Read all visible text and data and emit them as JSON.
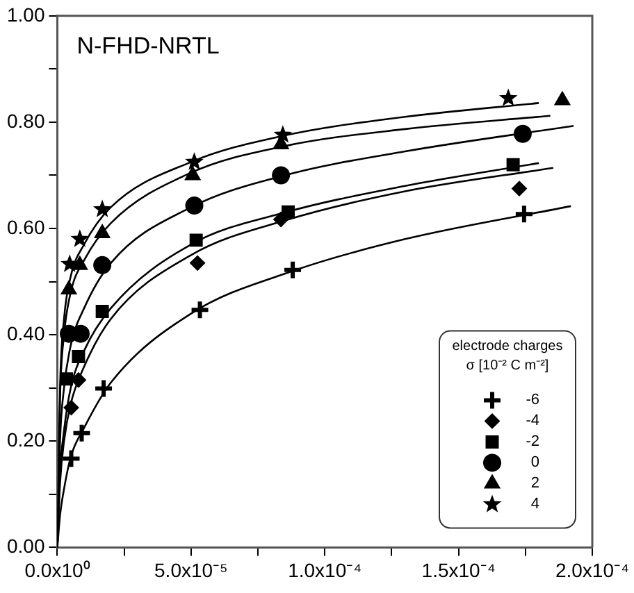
{
  "chart_data": {
    "type": "scatter",
    "title": "N-FHD-NRTL",
    "legend_title": "electrode charges\nσ [10⁻² C m⁻²]",
    "legend": "bottom right",
    "grid": false,
    "xlim": [
      0,
      0.0002
    ],
    "xticks": [
      {
        "value": 0,
        "label": "0.0x10⁰"
      },
      {
        "value": 2.5e-05,
        "label": null
      },
      {
        "value": 5e-05,
        "label": "5.0x10⁻⁵"
      },
      {
        "value": 7.5e-05,
        "label": null
      },
      {
        "value": 0.0001,
        "label": "1.0x10⁻⁴"
      },
      {
        "value": 0.000125,
        "label": null
      },
      {
        "value": 0.00015,
        "label": "1.5x10⁻⁴"
      },
      {
        "value": 0.000175,
        "label": null
      },
      {
        "value": 0.0002,
        "label": "2.0x10⁻⁴"
      }
    ],
    "ylim": [
      0,
      1
    ],
    "yticks": [
      {
        "value": 0,
        "label": "0.00"
      },
      {
        "value": 0.1,
        "label": null
      },
      {
        "value": 0.2,
        "label": "0.20"
      },
      {
        "value": 0.3,
        "label": null
      },
      {
        "value": 0.4,
        "label": "0.40"
      },
      {
        "value": 0.5,
        "label": null
      },
      {
        "value": 0.6,
        "label": "0.60"
      },
      {
        "value": 0.7,
        "label": null
      },
      {
        "value": 0.8,
        "label": "0.80"
      },
      {
        "value": 0.9,
        "label": null
      },
      {
        "value": 1,
        "label": "1.00"
      }
    ],
    "series": [
      {
        "name": "-6",
        "type": "scatter",
        "marker": "cross",
        "color": "#000000",
        "x": [
          5.2e-06,
          9.1e-06,
          1.73e-05,
          5.33e-05,
          8.8e-05,
          0.0001745
        ],
        "values": [
          0.167,
          0.215,
          0.299,
          0.447,
          0.522,
          0.627
        ]
      },
      {
        "name": "-4",
        "type": "scatter",
        "marker": "diamond",
        "color": "#000000",
        "x": [
          5.2e-06,
          7.9e-06,
          5.24e-05,
          8.36e-05,
          0.0001727
        ],
        "values": [
          0.263,
          0.315,
          0.535,
          0.617,
          0.675
        ]
      },
      {
        "name": "-2",
        "type": "scatter",
        "marker": "square",
        "color": "#000000",
        "x": [
          3.4e-06,
          7.9e-06,
          1.68e-05,
          5.19e-05,
          8.63e-05,
          0.0001704
        ],
        "values": [
          0.317,
          0.359,
          0.444,
          0.578,
          0.631,
          0.72
        ]
      },
      {
        "name": "0",
        "type": "scatter",
        "marker": "circle",
        "color": "#000000",
        "x": [
          4.3e-06,
          8.7e-06,
          1.68e-05,
          5.12e-05,
          8.36e-05,
          0.000174
        ],
        "values": [
          0.402,
          0.402,
          0.531,
          0.643,
          0.7,
          0.778
        ]
      },
      {
        "name": "2",
        "type": "scatter",
        "marker": "triangle",
        "color": "#000000",
        "x": [
          4.3e-06,
          8.4e-06,
          1.68e-05,
          5.06e-05,
          8.36e-05,
          0.0001888
        ],
        "values": [
          0.485,
          0.531,
          0.591,
          0.7,
          0.758,
          0.841
        ]
      },
      {
        "name": "4",
        "type": "scatter",
        "marker": "star",
        "color": "#000000",
        "x": [
          4.6e-06,
          8.4e-06,
          1.68e-05,
          5.12e-05,
          8.43e-05,
          0.0001686
        ],
        "values": [
          0.533,
          0.58,
          0.636,
          0.725,
          0.776,
          0.845
        ]
      },
      {
        "type": "line",
        "marker": "none",
        "color": "#000000",
        "x": [
          0,
          1e-06,
          2.5e-06,
          5e-06,
          1e-05,
          2e-05,
          5e-05,
          8.8e-05,
          0.00013,
          0.000192
        ],
        "values": [
          0,
          0.06,
          0.11,
          0.17,
          0.225,
          0.31,
          0.44,
          0.52,
          0.58,
          0.642
        ]
      },
      {
        "type": "line",
        "marker": "none",
        "color": "#000000",
        "x": [
          0,
          1e-06,
          2.5e-06,
          5e-06,
          1e-05,
          2e-05,
          5e-05,
          8.5e-05,
          0.00013,
          0.0001854
        ],
        "values": [
          0,
          0.12,
          0.2,
          0.27,
          0.34,
          0.43,
          0.55,
          0.615,
          0.67,
          0.714
        ]
      },
      {
        "type": "line",
        "marker": "none",
        "color": "#000000",
        "x": [
          0,
          1e-06,
          2.5e-06,
          5e-06,
          1e-05,
          2e-05,
          5e-05,
          8.5e-05,
          0.00013,
          0.00018
        ],
        "values": [
          0,
          0.14,
          0.22,
          0.3,
          0.37,
          0.45,
          0.57,
          0.63,
          0.68,
          0.723
        ]
      },
      {
        "type": "line",
        "marker": "none",
        "color": "#000000",
        "x": [
          0,
          1e-06,
          2.5e-06,
          5e-06,
          1e-05,
          2e-05,
          5e-05,
          8.5e-05,
          0.00013,
          0.000193
        ],
        "values": [
          0,
          0.2,
          0.3,
          0.38,
          0.45,
          0.535,
          0.64,
          0.7,
          0.745,
          0.793
        ]
      },
      {
        "type": "line",
        "marker": "none",
        "color": "#000000",
        "x": [
          0,
          1e-06,
          2.5e-06,
          5e-06,
          1e-05,
          2e-05,
          5e-05,
          8.5e-05,
          0.00013,
          0.0001843
        ],
        "values": [
          0,
          0.28,
          0.4,
          0.48,
          0.54,
          0.61,
          0.705,
          0.755,
          0.787,
          0.812
        ]
      },
      {
        "type": "line",
        "marker": "none",
        "color": "#000000",
        "x": [
          0,
          1e-06,
          2.5e-06,
          5e-06,
          1e-05,
          2e-05,
          5e-05,
          8.5e-05,
          0.00013,
          0.00018
        ],
        "values": [
          0,
          0.3,
          0.43,
          0.51,
          0.57,
          0.64,
          0.725,
          0.775,
          0.81,
          0.836
        ]
      }
    ]
  }
}
